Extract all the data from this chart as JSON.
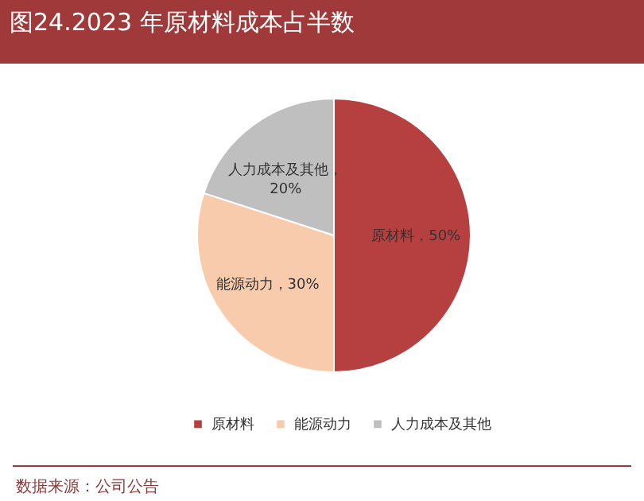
{
  "chart_data": {
    "type": "pie",
    "title": "图24.2023 年原材料成本占半数",
    "categories": [
      "原材料",
      "能源动力",
      "人力成本及其他"
    ],
    "values": [
      50,
      30,
      20
    ],
    "colors": [
      "#b5403f",
      "#f8cbad",
      "#bfbfbf"
    ],
    "value_labels": [
      "原材料，50%",
      "能源动力，30%",
      "人力成本及其他，20%"
    ],
    "legend": "bottom",
    "annotations": [
      "数据来源：公司公告"
    ]
  }
}
